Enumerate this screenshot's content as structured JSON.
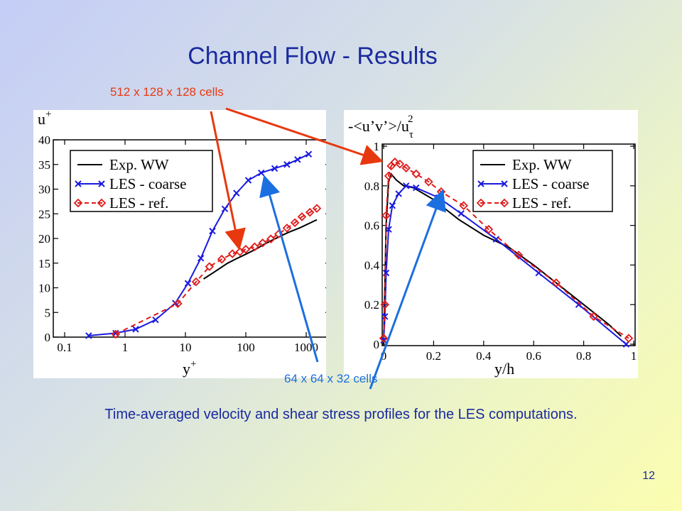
{
  "slide": {
    "title": "Channel Flow - Results",
    "caption": "Time-averaged velocity and shear stress profiles for the LES computations.",
    "page_number": "12",
    "annotation_fine": "512 x 128 x 128 cells",
    "annotation_coarse": "64 x 64 x 32 cells"
  },
  "colors": {
    "exp": "#000000",
    "coarse": "#1a1ae0",
    "ref": "#e01a1a",
    "arrow_fine": "#e8380f",
    "arrow_coarse": "#1c6fe0",
    "title": "#1a2a9e"
  },
  "chart_data": [
    {
      "type": "line",
      "ylabel_base": "u",
      "ylabel_sup": "+",
      "xlabel_base": "y",
      "xlabel_sup": "+",
      "x_scale": "log",
      "xlim": [
        0.1,
        2000
      ],
      "ylim": [
        0,
        40
      ],
      "xticks": [
        0.1,
        1,
        10,
        100,
        1000
      ],
      "xtick_labels": [
        "0.1",
        "1",
        "10",
        "100",
        "1000"
      ],
      "yticks": [
        0,
        5,
        10,
        15,
        20,
        25,
        30,
        35,
        40
      ],
      "ytick_labels": [
        "0",
        "5",
        "10",
        "15",
        "20",
        "25",
        "30",
        "35",
        "40"
      ],
      "legend_position": "top-left",
      "series": [
        {
          "name": "Exp. WW",
          "style": "solid",
          "marker": "none",
          "x": [
            20,
            30,
            50,
            70,
            100,
            150,
            200,
            300,
            500,
            800,
            1500
          ],
          "y": [
            11.8,
            13.2,
            15.0,
            15.9,
            16.8,
            17.9,
            18.8,
            19.9,
            21.2,
            22.2,
            23.8
          ]
        },
        {
          "name": "LES - coarse",
          "style": "solid",
          "marker": "x",
          "x": [
            0.25,
            0.7,
            1.5,
            3.2,
            6.8,
            11,
            18,
            28,
            45,
            70,
            110,
            180,
            300,
            480,
            720,
            1100
          ],
          "y": [
            0.3,
            0.8,
            1.6,
            3.5,
            6.9,
            10.9,
            16,
            21.5,
            26,
            29.2,
            31.8,
            33.3,
            34.2,
            35.0,
            36.0,
            37.1
          ]
        },
        {
          "name": "LES - ref.",
          "style": "dashed",
          "marker": "diamond",
          "x": [
            0.7,
            7.5,
            15,
            25,
            40,
            60,
            80,
            100,
            140,
            190,
            260,
            350,
            480,
            650,
            850,
            1150,
            1500
          ],
          "y": [
            0.6,
            6.8,
            11.2,
            14.3,
            15.8,
            16.9,
            17.3,
            17.8,
            18.3,
            19.1,
            19.9,
            20.9,
            22.1,
            23.2,
            24.4,
            25.3,
            26.1
          ]
        }
      ]
    },
    {
      "type": "line",
      "ylabel": "-<u’v’>/u",
      "ylabel_sub": "τ",
      "ylabel_sup": "2",
      "xlabel": "y/h",
      "xlim": [
        0,
        1
      ],
      "ylim": [
        0,
        1
      ],
      "xticks": [
        0,
        0.2,
        0.4,
        0.6,
        0.8,
        1
      ],
      "xtick_labels": [
        "0",
        "0.2",
        "0.4",
        "0.6",
        "0.8",
        "1"
      ],
      "yticks": [
        0,
        0.2,
        0.4,
        0.6,
        0.8,
        1
      ],
      "ytick_labels": [
        "0",
        "0.2",
        "0.4",
        "0.6",
        "0.8",
        "1"
      ],
      "legend_position": "top-right",
      "series": [
        {
          "name": "Exp. WW",
          "style": "solid",
          "marker": "none",
          "x": [
            0.0,
            0.005,
            0.01,
            0.02,
            0.03,
            0.05,
            0.08,
            0.12,
            0.2,
            0.3,
            0.4,
            0.5,
            0.6,
            0.7,
            0.8,
            0.9,
            0.95
          ],
          "y": [
            0.0,
            0.3,
            0.6,
            0.82,
            0.86,
            0.83,
            0.8,
            0.79,
            0.73,
            0.63,
            0.55,
            0.49,
            0.4,
            0.3,
            0.2,
            0.1,
            0.04
          ]
        },
        {
          "name": "LES - coarse",
          "style": "solid",
          "marker": "x",
          "x": [
            0.0,
            0.005,
            0.01,
            0.02,
            0.035,
            0.06,
            0.09,
            0.13,
            0.22,
            0.31,
            0.45,
            0.62,
            0.78,
            0.97
          ],
          "y": [
            0.02,
            0.14,
            0.36,
            0.58,
            0.7,
            0.76,
            0.8,
            0.79,
            0.74,
            0.66,
            0.53,
            0.36,
            0.2,
            0.0
          ]
        },
        {
          "name": "LES - ref.",
          "style": "dashed",
          "marker": "diamond",
          "x": [
            0.0,
            0.005,
            0.01,
            0.02,
            0.03,
            0.045,
            0.065,
            0.09,
            0.13,
            0.18,
            0.23,
            0.32,
            0.42,
            0.54,
            0.69,
            0.84,
            0.98
          ],
          "y": [
            0.03,
            0.2,
            0.65,
            0.85,
            0.9,
            0.92,
            0.91,
            0.89,
            0.86,
            0.82,
            0.77,
            0.7,
            0.58,
            0.45,
            0.31,
            0.14,
            0.03
          ]
        }
      ]
    }
  ]
}
